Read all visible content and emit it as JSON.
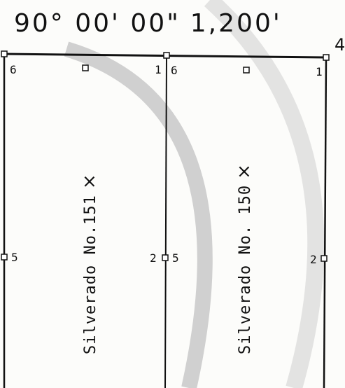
{
  "header": {
    "bearing": "90° 00' 00\"",
    "distance": "1,200'",
    "edge_fragment": "4"
  },
  "claims": [
    {
      "name": "Silverado No.151",
      "check_mark": "×",
      "corners": {
        "c1": "1",
        "c2": "2",
        "c5": "5",
        "c6": "6"
      }
    },
    {
      "name": "Silverado No. 150",
      "check_mark": "×",
      "corners": {
        "c1": "1",
        "c2": "2",
        "c5": "5",
        "c6": "6"
      }
    }
  ],
  "colors": {
    "ink": "#111111",
    "watermark": "#c8c8c8",
    "paper": "#fcfcfa"
  }
}
